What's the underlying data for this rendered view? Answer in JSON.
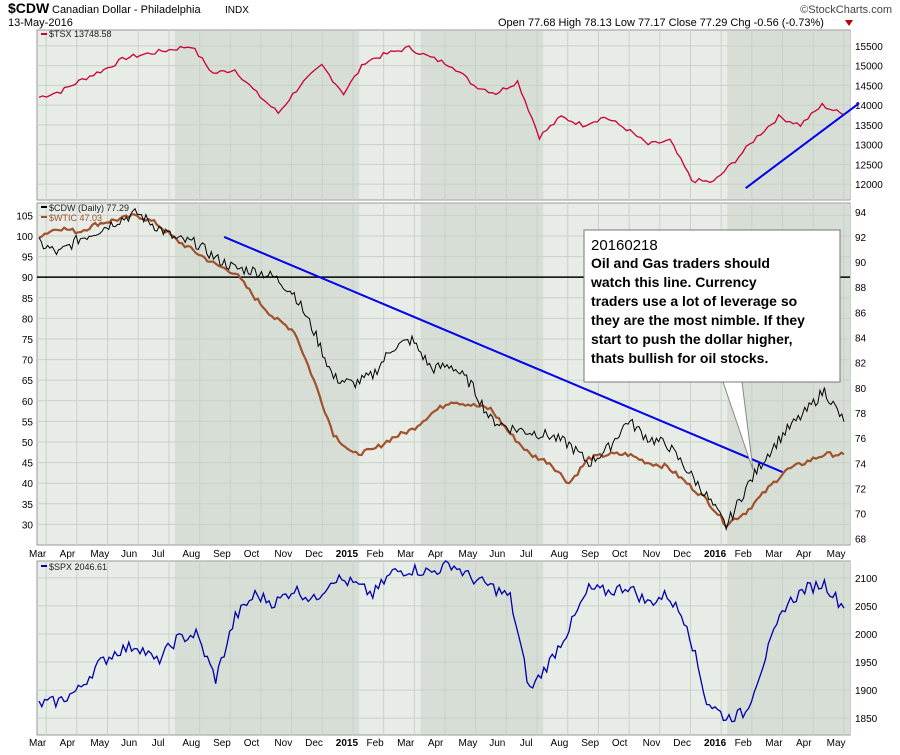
{
  "header": {
    "symbol": "$CDW",
    "name": "Canadian Dollar - Philadelphia",
    "exchange": "INDX",
    "date": "13-May-2016",
    "ohlc": "Open 77.68  High 78.13  Low 77.17  Close 77.29  Chg -0.56 (-0.73%)",
    "watermark": "©StockCharts.com"
  },
  "colors": {
    "tsx": "#cc0033",
    "cdw": "#000000",
    "wtic": "#a0522d",
    "spx": "#0000aa",
    "trend": "#0000ee",
    "panel_bg": "#e7ece7",
    "shade": "#d6ded6"
  },
  "chart_data": [
    {
      "type": "line",
      "panel": "top",
      "legend": "$TSX 13748.58",
      "series": [
        {
          "name": "$TSX",
          "values": [
            14200,
            14350,
            14650,
            14900,
            15200,
            15300,
            15400,
            15500,
            14800,
            14900,
            14300,
            13800,
            14500,
            15000,
            14300,
            15100,
            15300,
            15450,
            15200,
            15000,
            14500,
            14300,
            14600,
            13200,
            13700,
            13500,
            13700,
            13400,
            13000,
            13100,
            12100,
            12050,
            12600,
            13200,
            13700,
            13500,
            14000,
            13750
          ]
        }
      ],
      "ylim": [
        11600,
        15900
      ],
      "yticks": [
        12000,
        12500,
        13000,
        13500,
        14000,
        14500,
        15000,
        15500
      ],
      "trendline": {
        "from": {
          "x_month": 23.1,
          "y": 11900
        },
        "to": {
          "x_month": 26.8,
          "y": 14050
        }
      }
    },
    {
      "type": "line",
      "panel": "middle",
      "legend": [
        "$CDW (Daily) 77.29",
        "$WTIC 47.03"
      ],
      "series": [
        {
          "name": "$CDW",
          "axis": "right",
          "values": [
            91.5,
            90.7,
            91.8,
            92.5,
            93.3,
            93.9,
            92.8,
            91.8,
            91.5,
            90.3,
            89.5,
            89.3,
            88.8,
            87.5,
            84.5,
            80.8,
            80.3,
            81.0,
            83.2,
            83.8,
            81.5,
            81.8,
            80.3,
            77.5,
            76.8,
            76.5,
            76.2,
            75.5,
            74.0,
            75.2,
            77.4,
            76.0,
            75.5,
            73.5,
            71.4,
            69.0,
            72.0,
            74.5,
            76.5,
            78.0,
            79.8,
            77.3
          ]
        },
        {
          "name": "$WTIC",
          "axis": "left",
          "values": [
            100,
            102,
            101,
            103,
            104,
            105,
            103,
            99,
            96,
            93,
            91,
            85,
            80,
            77,
            65,
            52,
            47,
            48,
            51,
            53,
            57,
            60,
            59,
            58,
            52,
            47,
            45,
            40,
            46,
            47,
            47,
            45,
            44,
            40,
            36,
            30,
            33,
            38,
            43,
            45,
            47,
            47
          ]
        }
      ],
      "ylim_left": [
        25,
        108
      ],
      "yticks_left": [
        30,
        35,
        40,
        45,
        50,
        55,
        60,
        65,
        70,
        75,
        80,
        85,
        90,
        95,
        100,
        105
      ],
      "ylim_right": [
        67.5,
        94.7
      ],
      "yticks_right": [
        68,
        70,
        72,
        74,
        76,
        78,
        80,
        82,
        84,
        86,
        88,
        90,
        92,
        94
      ],
      "hline": {
        "axis": "left",
        "value": 90
      },
      "trendline": {
        "from": {
          "x_month": 6.1,
          "y": 92.0
        },
        "to": {
          "x_month": 24.3,
          "y": 73.3
        }
      },
      "annotation": {
        "title": "20160218",
        "lines": [
          "Oil and Gas traders should",
          "watch this line. Currency",
          "traders use a lot of leverage so",
          "they are the most nimble. If they",
          "start to push the dollar higher,",
          "thats bullish for oil stocks."
        ]
      }
    },
    {
      "type": "line",
      "panel": "bottom",
      "legend": "$SPX 2046.61",
      "series": [
        {
          "name": "$SPX",
          "values": [
            1875,
            1880,
            1900,
            1945,
            1970,
            1980,
            1950,
            1990,
            2000,
            1920,
            2030,
            2070,
            2055,
            2080,
            2060,
            2100,
            2090,
            2070,
            2110,
            2115,
            2110,
            2125,
            2100,
            2085,
            2065,
            1900,
            1950,
            2010,
            2080,
            2075,
            2085,
            2055,
            2070,
            2020,
            1880,
            1850,
            1860,
            1960,
            2050,
            2080,
            2090,
            2046
          ]
        }
      ],
      "ylim": [
        1820,
        2130
      ],
      "yticks": [
        1850,
        1900,
        1950,
        2000,
        2050,
        2100
      ]
    }
  ],
  "x_axis": {
    "labels": [
      "Mar",
      "Apr",
      "May",
      "Jun",
      "Jul",
      "Aug",
      "Sep",
      "Oct",
      "Nov",
      "Dec",
      "2015",
      "Feb",
      "Mar",
      "Apr",
      "May",
      "Jun",
      "Jul",
      "Aug",
      "Sep",
      "Oct",
      "Nov",
      "Dec",
      "2016",
      "Feb",
      "Mar",
      "Apr",
      "May"
    ],
    "bold_labels": [
      "2015",
      "2016"
    ]
  }
}
